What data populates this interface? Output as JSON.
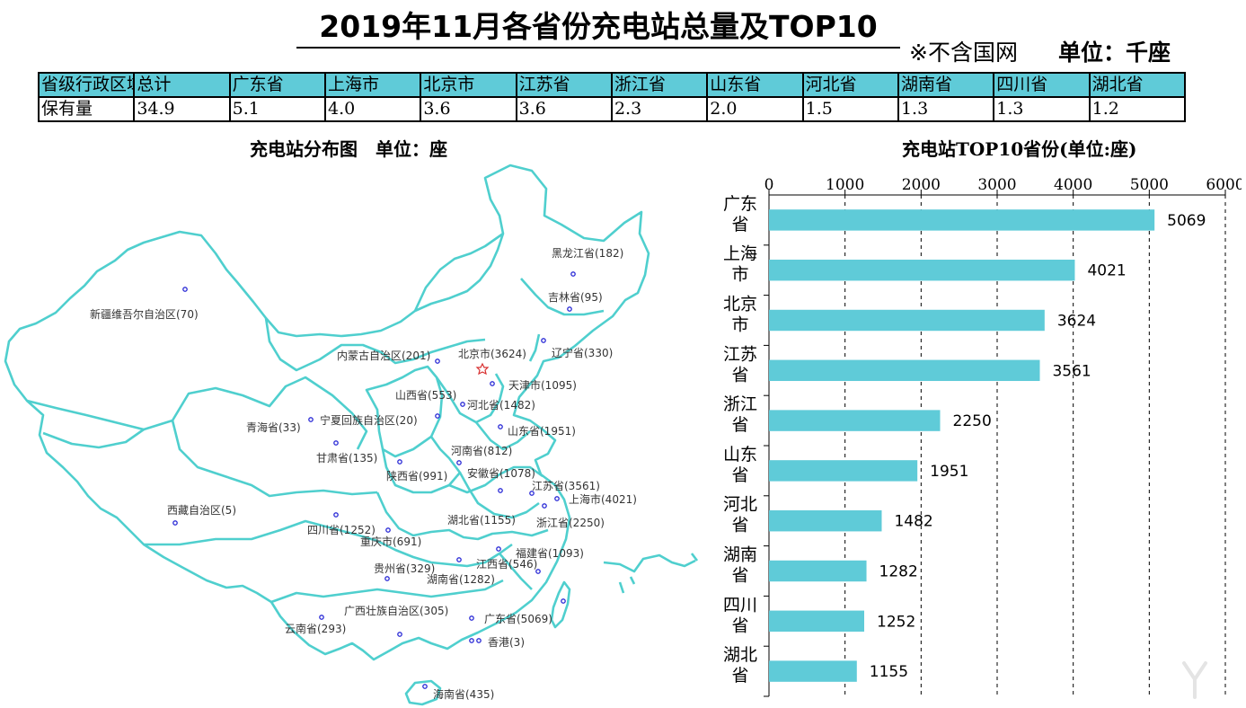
{
  "header": {
    "title": "2019年11月各省份充电站总量及TOP10",
    "note": "※不含国网",
    "unit": "单位：千座"
  },
  "summary_table": {
    "headers": [
      "省级行政区域",
      "总计",
      "广东省",
      "上海市",
      "北京市",
      "江苏省",
      "浙江省",
      "山东省",
      "河北省",
      "湖南省",
      "四川省",
      "湖北省"
    ],
    "rows": [
      [
        "保有量",
        "34.9",
        "5.1",
        "4.0",
        "3.6",
        "3.6",
        "2.3",
        "2.0",
        "1.5",
        "1.3",
        "1.3",
        "1.2"
      ]
    ]
  },
  "map": {
    "title": "充电站分布图　单位：座",
    "outline_color": "#4fcfce",
    "labels": [
      "黑龙江省(182)",
      "吉林省(95)",
      "辽宁省(330)",
      "新疆维吾尔自治区(70)",
      "内蒙古自治区(201)",
      "北京市(3624)",
      "天津市(1095)",
      "山西省(553)",
      "河北省(1482)",
      "山东省(1951)",
      "宁夏回族自治区(20)",
      "青海省(33)",
      "甘肃省(135)",
      "河南省(812)",
      "陕西省(991)",
      "安徽省(1078)",
      "江苏省(3561)",
      "上海市(4021)",
      "西藏自治区(5)",
      "湖北省(1155)",
      "浙江省(2250)",
      "四川省(1252)",
      "重庆市(691)",
      "福建省(1093)",
      "贵州省(329)",
      "江西省(546)",
      "湖南省(1282)",
      "广西壮族自治区(305)",
      "广东省(5069)",
      "云南省(293)",
      "香港(3)",
      "海南省(435)"
    ]
  },
  "chart_data": {
    "type": "bar",
    "orientation": "horizontal",
    "title": "充电站TOP10省份(单位:座)",
    "categories": [
      "广东省",
      "上海市",
      "北京市",
      "江苏省",
      "浙江省",
      "山东省",
      "河北省",
      "湖南省",
      "四川省",
      "湖北省"
    ],
    "category_lines": [
      [
        "广东",
        "省"
      ],
      [
        "上海",
        "市"
      ],
      [
        "北京",
        "市"
      ],
      [
        "江苏",
        "省"
      ],
      [
        "浙江",
        "省"
      ],
      [
        "山东",
        "省"
      ],
      [
        "河北",
        "省"
      ],
      [
        "湖南",
        "省"
      ],
      [
        "四川",
        "省"
      ],
      [
        "湖北",
        "省"
      ]
    ],
    "values": [
      5069,
      4021,
      3624,
      3561,
      2250,
      1951,
      1482,
      1282,
      1252,
      1155
    ],
    "xlim": [
      0,
      6000
    ],
    "xticks": [
      0,
      1000,
      2000,
      3000,
      4000,
      5000,
      6000
    ],
    "axis_position": "top",
    "grid": "vertical dashed",
    "bar_color": "#5fcbd8"
  }
}
